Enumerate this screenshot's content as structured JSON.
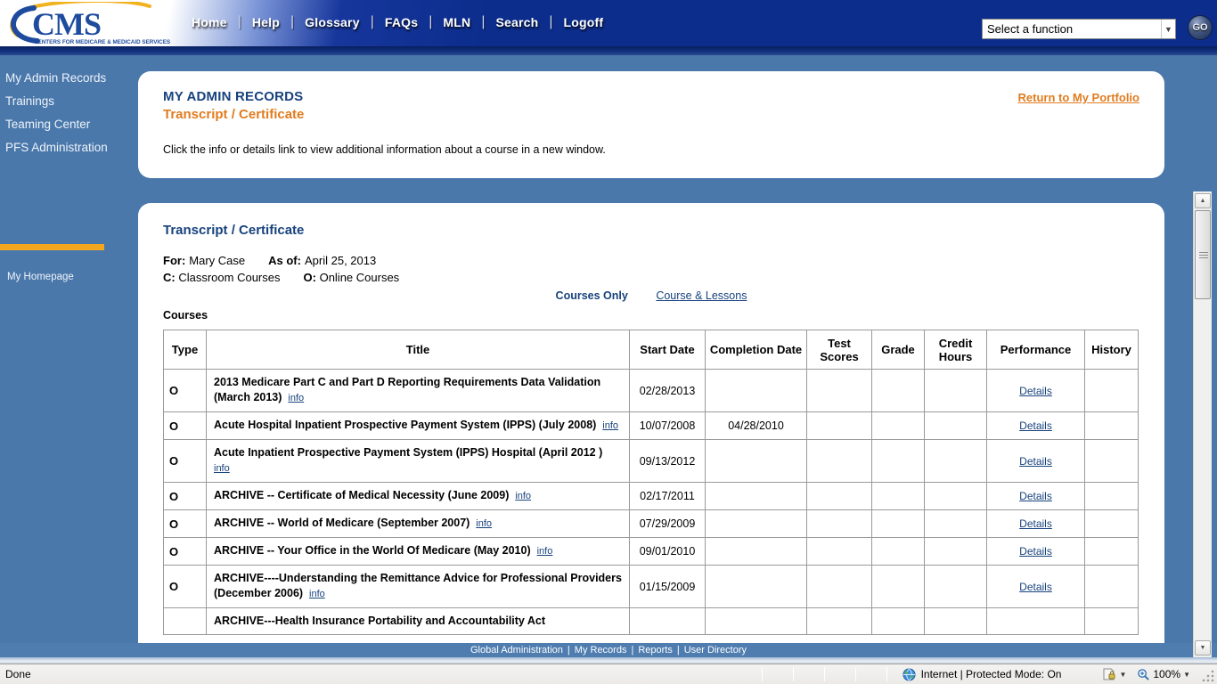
{
  "header": {
    "logo_text": "CMS",
    "logo_subtext": "CENTERS FOR MEDICARE & MEDICAID SERVICES",
    "nav": [
      "Home",
      "Help",
      "Glossary",
      "FAQs",
      "MLN",
      "Search",
      "Logoff"
    ],
    "function_select_value": "Select a function",
    "go_label": "GO"
  },
  "sidebar": {
    "items": [
      "My Admin Records",
      "Trainings",
      "Teaming Center",
      "PFS Administration"
    ],
    "homepage": "My Homepage"
  },
  "panel1": {
    "title": "MY ADMIN RECORDS",
    "subtitle": "Transcript / Certificate",
    "return_link": "Return to My Portfolio",
    "instruction": "Click the info or details link to view additional information about a course in a new window."
  },
  "panel2": {
    "heading": "Transcript / Certificate",
    "for_label": "For:",
    "for_value": "Mary Case",
    "asof_label": "As of:",
    "asof_value": "April 25, 2013",
    "c_label": "C:",
    "c_value": "Classroom Courses",
    "o_label": "O:",
    "o_value": "Online Courses",
    "courses_only": "Courses Only",
    "course_lessons": "Course & Lessons",
    "courses_label": "Courses"
  },
  "table": {
    "headers": [
      "Type",
      "Title",
      "Start Date",
      "Completion Date",
      "Test Scores",
      "Grade",
      "Credit Hours",
      "Performance",
      "History"
    ],
    "info_label": "info",
    "details_label": "Details",
    "rows": [
      {
        "type": "O",
        "title": "2013 Medicare Part C and Part D Reporting Requirements Data Validation (March 2013)",
        "info": true,
        "start": "02/28/2013",
        "completion": "",
        "details": true
      },
      {
        "type": "O",
        "title": "Acute Hospital Inpatient Prospective Payment System (IPPS) (July 2008)",
        "info": true,
        "start": "10/07/2008",
        "completion": "04/28/2010",
        "details": true
      },
      {
        "type": "O",
        "title": "Acute Inpatient Prospective Payment System (IPPS) Hospital (April 2012 )",
        "info": true,
        "start": "09/13/2012",
        "completion": "",
        "details": true
      },
      {
        "type": "O",
        "title": "ARCHIVE -- Certificate of Medical Necessity (June 2009)",
        "info": true,
        "start": "02/17/2011",
        "completion": "",
        "details": true
      },
      {
        "type": "O",
        "title": "ARCHIVE -- World of Medicare (September 2007)",
        "info": true,
        "start": "07/29/2009",
        "completion": "",
        "details": true
      },
      {
        "type": "O",
        "title": "ARCHIVE -- Your Office in the World Of Medicare (May 2010)",
        "info": true,
        "start": "09/01/2010",
        "completion": "",
        "details": true
      },
      {
        "type": "O",
        "title": "ARCHIVE----Understanding the Remittance Advice for Professional Providers (December 2006)",
        "info": true,
        "start": "01/15/2009",
        "completion": "",
        "details": true
      },
      {
        "type": "",
        "title": "ARCHIVE---Health Insurance Portability and Accountability Act",
        "info": false,
        "start": "",
        "completion": "",
        "details": false
      }
    ]
  },
  "footer": {
    "links": [
      "Global Administration",
      "My Records",
      "Reports",
      "User Directory"
    ]
  },
  "statusbar": {
    "status": "Done",
    "zone": "Internet | Protected Mode: On",
    "zoom": "100%"
  }
}
